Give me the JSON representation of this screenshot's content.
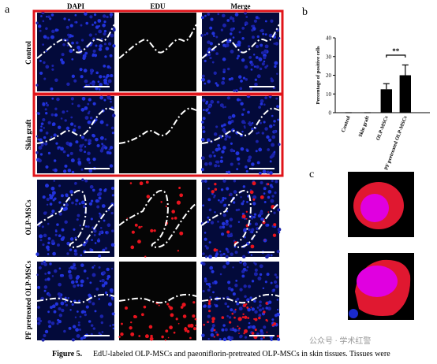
{
  "panel_labels": [
    "a",
    "b",
    "c"
  ],
  "columns": [
    "DAPI",
    "EDU",
    "Merge"
  ],
  "rows": [
    "Control",
    "Skin graft",
    "OLP-MSCs",
    "PF pretreated OLP-MSCs"
  ],
  "chart_data": {
    "type": "bar",
    "y_label": "Percentage of positive cells",
    "categories": [
      "Control",
      "Skin graft",
      "OLP-MSCs",
      "PF pretreated OLP-MSCs"
    ],
    "values": [
      0,
      0,
      12.5,
      20
    ],
    "errors": [
      0,
      0,
      3,
      5.5
    ],
    "color": "#000000",
    "ylim": [
      0,
      40
    ],
    "yticks": [
      0,
      10,
      20,
      30,
      40
    ],
    "annotation": "**"
  },
  "caption": {
    "label": "Figure 5.",
    "text": "EdU-labeled OLP-MSCs and paeoniflorin-pretreated OLP-MSCs in skin tissues. Tissues were"
  },
  "watermark": "公众号 · 学术红警"
}
